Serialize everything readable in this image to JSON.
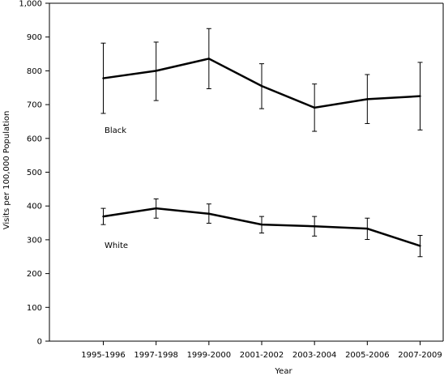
{
  "chart_data": {
    "type": "line",
    "categories": [
      "1995-1996",
      "1997-1998",
      "1999-2000",
      "2001-2002",
      "2003-2004",
      "2005-2006",
      "2007-2009"
    ],
    "series": [
      {
        "name": "Black",
        "values": [
          778,
          800,
          836,
          755,
          691,
          716,
          725
        ],
        "error_low": [
          674,
          712,
          747,
          688,
          621,
          644,
          625
        ],
        "error_high": [
          882,
          885,
          925,
          821,
          761,
          789,
          825
        ]
      },
      {
        "name": "White",
        "values": [
          369,
          393,
          377,
          345,
          340,
          333,
          282
        ],
        "error_low": [
          345,
          364,
          349,
          320,
          311,
          301,
          250
        ],
        "error_high": [
          393,
          421,
          406,
          369,
          369,
          364,
          313
        ]
      }
    ],
    "xlabel": "Year",
    "ylabel": "Visits per 100,000 Population",
    "ylim": [
      0,
      1000
    ],
    "yticks": [
      "0",
      "100",
      "200",
      "300",
      "400",
      "500",
      "600",
      "700",
      "800",
      "900",
      "1,000"
    ],
    "grid": false,
    "legend": "inline labels",
    "colors": {
      "line": "#000000",
      "axis": "#000000"
    }
  }
}
